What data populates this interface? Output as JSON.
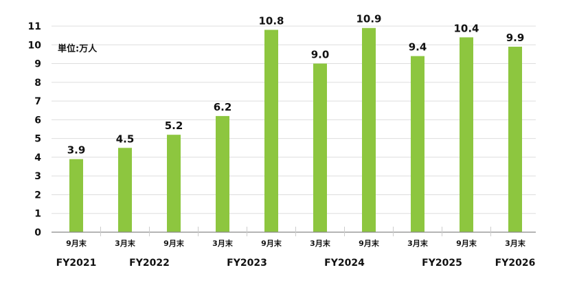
{
  "chart_data": {
    "type": "bar",
    "unit_label": "単位:万人",
    "categories": [
      "9月末",
      "3月末",
      "9月末",
      "3月末",
      "9月末",
      "3月末",
      "9月末",
      "3月末",
      "9月末",
      "3月末"
    ],
    "values": [
      3.9,
      4.5,
      5.2,
      6.2,
      10.8,
      9.0,
      10.9,
      9.4,
      10.4,
      9.9
    ],
    "data_labels": [
      "3.9",
      "4.5",
      "5.2",
      "6.2",
      "10.8",
      "9.0",
      "10.9",
      "9.4",
      "10.4",
      "9.9"
    ],
    "groups": [
      {
        "label": "FY2021",
        "start": 0,
        "end": 0
      },
      {
        "label": "FY2022",
        "start": 1,
        "end": 2
      },
      {
        "label": "FY2023",
        "start": 3,
        "end": 4
      },
      {
        "label": "FY2024",
        "start": 5,
        "end": 6
      },
      {
        "label": "FY2025",
        "start": 7,
        "end": 8
      },
      {
        "label": "FY2026",
        "start": 9,
        "end": 9
      }
    ],
    "y_ticks": [
      "0",
      "1",
      "2",
      "3",
      "4",
      "5",
      "6",
      "7",
      "8",
      "9",
      "10",
      "11"
    ],
    "ylim": [
      0,
      11
    ],
    "grid": true,
    "bar_color": "#8dc63f",
    "grid_color": "#dddddd"
  }
}
